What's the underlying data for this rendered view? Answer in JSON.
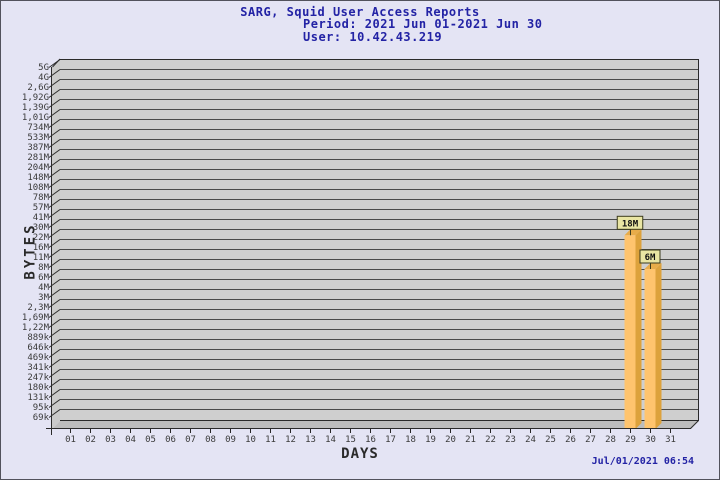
{
  "window": {
    "background": "#E4E4F4",
    "border_color": "#52525C"
  },
  "header": {
    "title": "SARG, Squid User Access Reports",
    "period": "Period: 2021 Jun 01-2021 Jun 30",
    "user": "User: 10.42.43.219",
    "text_color": "#2323A5"
  },
  "footer": {
    "timestamp": "Jul/01/2021 06:54"
  },
  "chart_data": {
    "type": "bar",
    "title": "SARG, Squid User Access Reports",
    "subtitle": "Period: 2021 Jun 01-2021 Jun 30",
    "user_line": "User: 10.42.43.219",
    "xlabel": "DAYS",
    "ylabel": "BYTES",
    "y_scale": "log",
    "grid": "horizontal",
    "style": "3d-bars",
    "y_tick_labels": [
      "5G",
      "4G",
      "2,6G",
      "1,92G",
      "1,39G",
      "1,01G",
      "734M",
      "533M",
      "387M",
      "281M",
      "204M",
      "148M",
      "108M",
      "78M",
      "57M",
      "41M",
      "30M",
      "22M",
      "16M",
      "11M",
      "8M",
      "6M",
      "4M",
      "3M",
      "2,3M",
      "1,69M",
      "1,22M",
      "889k",
      "646k",
      "469k",
      "341k",
      "247k",
      "180k",
      "131k",
      "95k",
      "69k"
    ],
    "y_tick_values_bytes": [
      5000000000,
      4000000000,
      2600000000,
      1920000000,
      1390000000,
      1010000000,
      734000000,
      533000000,
      387000000,
      281000000,
      204000000,
      148000000,
      108000000,
      78000000,
      57000000,
      41000000,
      30000000,
      22000000,
      16000000,
      11000000,
      8000000,
      6000000,
      4000000,
      3000000,
      2300000,
      1690000,
      1220000,
      889000,
      646000,
      469000,
      341000,
      247000,
      180000,
      131000,
      95000,
      69000
    ],
    "x_tick_labels": [
      "01",
      "02",
      "03",
      "04",
      "05",
      "06",
      "07",
      "08",
      "09",
      "10",
      "11",
      "12",
      "13",
      "14",
      "15",
      "16",
      "17",
      "18",
      "19",
      "20",
      "21",
      "22",
      "23",
      "24",
      "25",
      "26",
      "27",
      "28",
      "29",
      "30",
      "31"
    ],
    "bars": [
      {
        "day": "29",
        "value_bytes": 18000000,
        "label": "18M"
      },
      {
        "day": "30",
        "value_bytes": 6000000,
        "label": "6M"
      }
    ],
    "colors": {
      "plot_background": "#CFCFCF",
      "grid_line": "#4A4A4A",
      "frame_line": "#2a2a2a",
      "left_wall": "#CACACA",
      "floor": "#BDBDBD",
      "bar_front": "#FFC46E",
      "bar_side": "#DDA23C",
      "bar_top": "#E8AC4A",
      "annotation_fill": "#E9E5A3",
      "annotation_border": "#3b3b1e",
      "tick_text": "#3a3a3a"
    }
  }
}
